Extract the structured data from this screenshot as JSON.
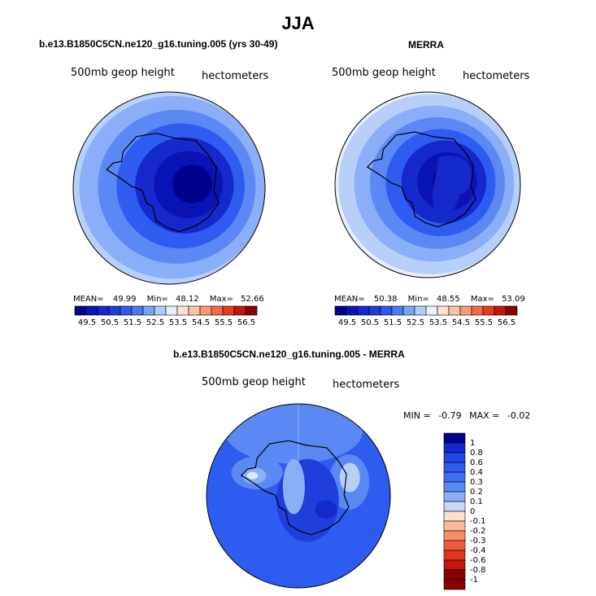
{
  "page": {
    "season": "JJA"
  },
  "colors": {
    "seq": [
      "#00008b",
      "#0a14b4",
      "#1428cc",
      "#1e3fdc",
      "#2d5be8",
      "#4a7cef",
      "#7aa3f4",
      "#b0ccf8",
      "#e8eefa",
      "#fde4d4",
      "#fbc4a6",
      "#f7987a",
      "#f26a4a",
      "#e83a1e",
      "#c8160c",
      "#8b0000"
    ],
    "diff": [
      "#00008b",
      "#1428cc",
      "#2046e8",
      "#2e5cf0",
      "#3f6ff2",
      "#5a89f4",
      "#8aaef7",
      "#c5d9fb",
      "#fde0cf",
      "#fbb89a",
      "#f68c68",
      "#ee5c3c",
      "#e2341c",
      "#c0140c",
      "#8b0000"
    ],
    "coast": "#000000"
  },
  "chart_data": [
    {
      "type": "heatmap",
      "title": "b.e13.B1850C5CN.ne120_g16.tuning.005 (yrs 30-49)",
      "left_label": "500mb geop height",
      "right_label": "hectometers",
      "stats": {
        "mean_label": "MEAN=",
        "mean": "49.99",
        "min_label": "Min=",
        "min": "48.12",
        "max_label": "Max=",
        "max": "52.66"
      },
      "colorbar_levels": [
        "49.5",
        "50.5",
        "51.5",
        "52.5",
        "53.5",
        "54.5",
        "55.5",
        "56.5"
      ]
    },
    {
      "type": "heatmap",
      "title": "MERRA",
      "left_label": "500mb geop height",
      "right_label": "hectometers",
      "stats": {
        "mean_label": "MEAN=",
        "mean": "50.38",
        "min_label": "Min=",
        "min": "48.55",
        "max_label": "Max=",
        "max": "53.09"
      },
      "colorbar_levels": [
        "49.5",
        "50.5",
        "51.5",
        "52.5",
        "53.5",
        "54.5",
        "55.5",
        "56.5"
      ]
    },
    {
      "type": "heatmap",
      "title": "b.e13.B1850C5CN.ne120_g16.tuning.005 - MERRA",
      "left_label": "500mb geop height",
      "right_label": "hectometers",
      "stats": {
        "min_label": "MIN =",
        "min": "-0.79",
        "max_label": "MAX =",
        "max": "-0.02"
      },
      "colorbar_levels": [
        "1",
        "0.8",
        "0.6",
        "0.4",
        "0.3",
        "0.2",
        "0.1",
        "0",
        "-0.1",
        "-0.2",
        "-0.3",
        "-0.4",
        "-0.6",
        "-0.8",
        "-1"
      ]
    }
  ]
}
